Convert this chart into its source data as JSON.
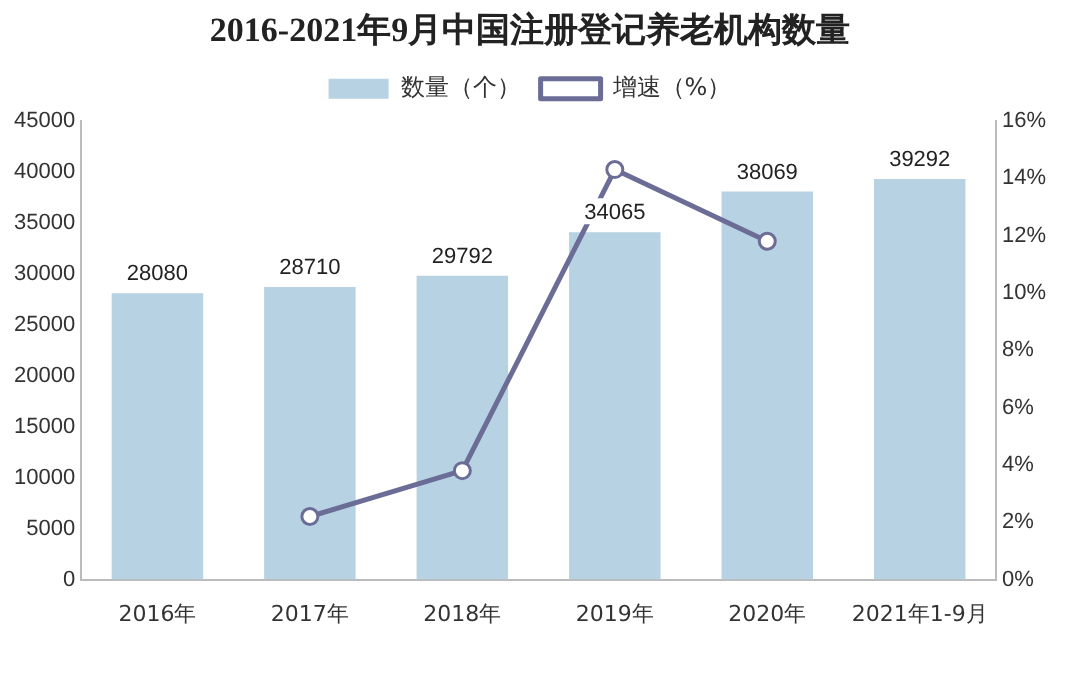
{
  "chart_data": {
    "type": "bar",
    "title": "2016-2021年9月中国注册登记养老机构数量",
    "categories": [
      "2016年",
      "2017年",
      "2018年",
      "2019年",
      "2020年",
      "2021年1-9月"
    ],
    "series": [
      {
        "name": "数量（个）",
        "color": "#b7d2e2",
        "values": [
          28080,
          28710,
          29792,
          34065,
          38069,
          39292
        ],
        "value_labels": [
          "28080",
          "28710",
          "29792",
          "34065",
          "38069",
          "39292"
        ]
      },
      {
        "name": "增速（%）",
        "type": "line",
        "axis": "y2",
        "color": "#6b6d96",
        "marker": "circle",
        "values": [
          null,
          2.2,
          3.8,
          14.3,
          11.8,
          null
        ]
      }
    ],
    "ylim": [
      0,
      45000
    ],
    "yticks": [
      0,
      5000,
      10000,
      15000,
      20000,
      25000,
      30000,
      35000,
      40000,
      45000
    ],
    "y2lim": [
      0,
      16
    ],
    "y2ticks": [
      {
        "value": 0,
        "label": "0%"
      },
      {
        "value": 2,
        "label": "2%"
      },
      {
        "value": 4,
        "label": "4%"
      },
      {
        "value": 6,
        "label": "6%"
      },
      {
        "value": 8,
        "label": "8%"
      },
      {
        "value": 10,
        "label": "10%"
      },
      {
        "value": 12,
        "label": "12%"
      },
      {
        "value": 14,
        "label": "14%"
      },
      {
        "value": 16,
        "label": "16%"
      }
    ],
    "legend": "top",
    "grid": false
  }
}
